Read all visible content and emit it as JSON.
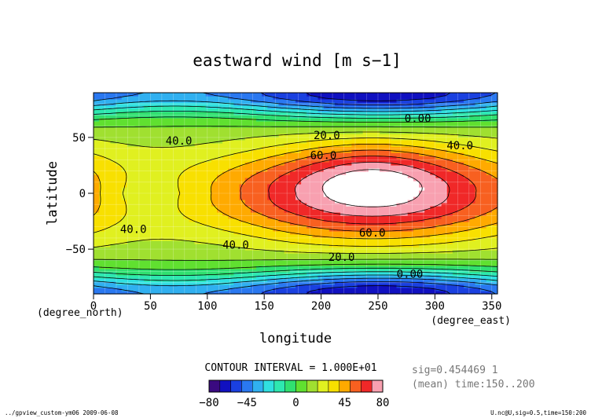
{
  "chart_data": {
    "type": "heatmap",
    "title": "eastward wind [m s−1]",
    "xlabel": "longitude",
    "ylabel": "latitude",
    "x_unit_label": "(degree_east)",
    "y_unit_label": "(degree_north)",
    "xlim": [
      0,
      355
    ],
    "ylim": [
      -90,
      90
    ],
    "xticks": [
      0,
      50,
      100,
      150,
      200,
      250,
      300,
      350
    ],
    "yticks": [
      -50,
      0,
      50
    ],
    "contour_interval_text": "CONTOUR INTERVAL = 1.000E+01",
    "contour_labels": [
      {
        "text": "40.0",
        "x": 75,
        "y": 47
      },
      {
        "text": "20.0",
        "x": 205,
        "y": 52
      },
      {
        "text": "0.00",
        "x": 285,
        "y": 67
      },
      {
        "text": "40.0",
        "x": 322,
        "y": 43
      },
      {
        "text": "60.0",
        "x": 202,
        "y": 34
      },
      {
        "text": "40.0",
        "x": 35,
        "y": -32
      },
      {
        "text": "40.0",
        "x": 125,
        "y": -46
      },
      {
        "text": "60.0",
        "x": 245,
        "y": -35
      },
      {
        "text": "20.0",
        "x": 218,
        "y": -57
      },
      {
        "text": "0.00",
        "x": 278,
        "y": -72
      }
    ],
    "field_model": {
      "jet_core_max": 82,
      "jet_core_lon": 245,
      "jet_core_lat": 20,
      "note_free": null
    },
    "colorbar": {
      "min": -80,
      "max": 80,
      "tick_labels": [
        "−80",
        "−45",
        "0",
        "45",
        "80"
      ],
      "tick_values": [
        -80,
        -45,
        0,
        45,
        80
      ]
    },
    "colors": {
      "levels": [
        -80,
        -70,
        -60,
        -50,
        -40,
        -30,
        -20,
        -10,
        0,
        10,
        20,
        30,
        40,
        50,
        60,
        70,
        80
      ],
      "fills": [
        "#3a0a80",
        "#1010c0",
        "#1a40e0",
        "#2a78f0",
        "#30b0f0",
        "#30e0e0",
        "#2ee8b0",
        "#30e070",
        "#60e030",
        "#a0e030",
        "#e0f020",
        "#f8e000",
        "#ffaa00",
        "#f86020",
        "#f02828",
        "#f8a0b0",
        "#ffffff"
      ]
    },
    "annotations": {
      "sig": "sig=0.454469 1",
      "mean": "(mean) time:150..200"
    }
  },
  "footer": {
    "left": "../gpview_custom-ym06  2009-06-08",
    "right": "U.nc@U,sig=0.5,time=150:200"
  }
}
